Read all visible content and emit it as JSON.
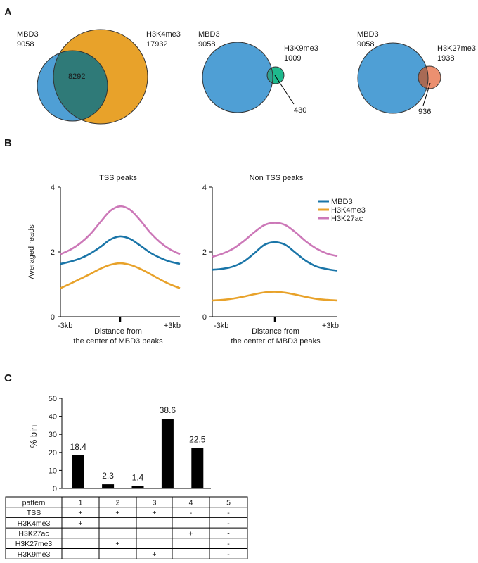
{
  "panels": [
    "A",
    "B",
    "C"
  ],
  "venn": [
    {
      "left": {
        "name": "MBD3",
        "count": "9058"
      },
      "right": {
        "name": "H3K4me3",
        "count": "17932"
      },
      "overlap": "8292",
      "colors": {
        "left": "#4f9fd5",
        "right": "#e8a22a",
        "overlap": "#2f7a78"
      }
    },
    {
      "left": {
        "name": "MBD3",
        "count": "9058"
      },
      "right": {
        "name": "H3K9me3",
        "count": "1009"
      },
      "overlap": "430",
      "colors": {
        "left": "#4f9fd5",
        "right": "#1eb98d",
        "overlap": "#30a090"
      }
    },
    {
      "left": {
        "name": "MBD3",
        "count": "9058"
      },
      "right": {
        "name": "H3K27me3",
        "count": "1938"
      },
      "overlap": "936",
      "colors": {
        "left": "#4f9fd5",
        "right": "#ec9070",
        "overlap": "#a86a55"
      }
    }
  ],
  "profiles": {
    "ylabel": "Averaged reads",
    "xlabel_line1": "Distance from",
    "xlabel_line2": "the center of MBD3 peaks",
    "xtick_left": "-3kb",
    "xtick_right": "+3kb",
    "legend": [
      {
        "name": "MBD3",
        "color": "#1a75a8"
      },
      {
        "name": "H3K4me3",
        "color": "#e8a22a"
      },
      {
        "name": "H3K27ac",
        "color": "#cc78b8"
      }
    ]
  },
  "table": {
    "header": [
      "pattern",
      "1",
      "2",
      "3",
      "4",
      "5"
    ],
    "rows": [
      [
        "TSS",
        "+",
        "+",
        "+",
        "-",
        "-"
      ],
      [
        "H3K4me3",
        "+",
        "",
        "",
        "",
        "-"
      ],
      [
        "H3K27ac",
        "",
        "",
        "",
        "+",
        "-"
      ],
      [
        "H3K27me3",
        "",
        "+",
        "",
        "",
        "-"
      ],
      [
        "H3K9me3",
        "",
        "",
        "+",
        "",
        "-"
      ]
    ]
  },
  "chart_data": [
    {
      "type": "line",
      "title": "TSS peaks",
      "xlabel": "Distance from the center of MBD3 peaks",
      "ylabel": "Averaged reads",
      "x": [
        -3,
        -2.5,
        -2,
        -1.5,
        -1,
        -0.5,
        0,
        0.5,
        1,
        1.5,
        2,
        2.5,
        3
      ],
      "xlim": [
        -3,
        3
      ],
      "ylim": [
        0,
        4
      ],
      "yticks": [
        0,
        2,
        4
      ],
      "series": [
        {
          "name": "MBD3",
          "values": [
            1.63,
            1.7,
            1.8,
            1.95,
            2.15,
            2.38,
            2.48,
            2.4,
            2.2,
            1.98,
            1.82,
            1.7,
            1.63
          ]
        },
        {
          "name": "H3K4me3",
          "values": [
            0.88,
            1.02,
            1.17,
            1.32,
            1.48,
            1.6,
            1.65,
            1.6,
            1.48,
            1.32,
            1.15,
            1.0,
            0.88
          ]
        },
        {
          "name": "H3K27ac",
          "values": [
            1.93,
            2.07,
            2.27,
            2.55,
            2.92,
            3.27,
            3.41,
            3.3,
            2.98,
            2.6,
            2.3,
            2.08,
            1.93
          ]
        }
      ]
    },
    {
      "type": "line",
      "title": "Non TSS peaks",
      "xlabel": "Distance from the center of MBD3 peaks",
      "ylabel": "",
      "x": [
        -3,
        -2.5,
        -2,
        -1.5,
        -1,
        -0.5,
        0,
        0.5,
        1,
        1.5,
        2,
        2.5,
        3
      ],
      "xlim": [
        -3,
        3
      ],
      "ylim": [
        0,
        4
      ],
      "yticks": [
        0,
        2,
        4
      ],
      "legend_position": "top-right",
      "series": [
        {
          "name": "MBD3",
          "values": [
            1.45,
            1.48,
            1.55,
            1.7,
            1.95,
            2.22,
            2.3,
            2.22,
            1.97,
            1.72,
            1.55,
            1.47,
            1.42
          ]
        },
        {
          "name": "H3K4me3",
          "values": [
            0.5,
            0.52,
            0.56,
            0.62,
            0.69,
            0.75,
            0.77,
            0.74,
            0.68,
            0.61,
            0.55,
            0.52,
            0.5
          ]
        },
        {
          "name": "H3K27ac",
          "values": [
            1.85,
            1.95,
            2.1,
            2.33,
            2.6,
            2.83,
            2.9,
            2.83,
            2.6,
            2.32,
            2.1,
            1.95,
            1.87
          ]
        }
      ]
    },
    {
      "type": "bar",
      "categories": [
        "1",
        "2",
        "3",
        "4",
        "5"
      ],
      "values": [
        18.4,
        2.3,
        1.4,
        38.6,
        22.5
      ],
      "ylabel": "% bin",
      "ylim": [
        0,
        50
      ],
      "yticks": [
        0,
        10,
        20,
        30,
        40,
        50
      ],
      "color": "#000000"
    }
  ]
}
